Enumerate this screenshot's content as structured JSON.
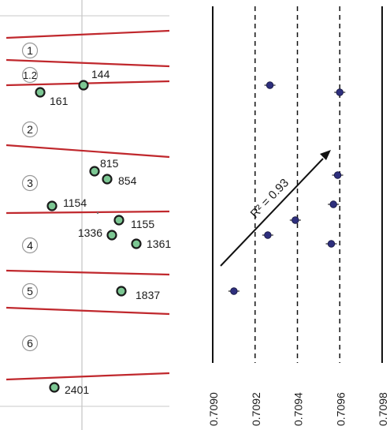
{
  "chart_data": [
    {
      "type": "scatter",
      "unit_labels": [
        "1",
        "1.2",
        "2",
        "3",
        "4",
        "5",
        "6"
      ],
      "points": [
        {
          "label": "144",
          "x": 0.5,
          "y": 144
        },
        {
          "label": "161",
          "x": -1.3,
          "y": 161
        },
        {
          "label": "815",
          "x": 0.4,
          "y": 815
        },
        {
          "label": "854",
          "x": 0.85,
          "y": 854
        },
        {
          "label": "1154",
          "x": -1.0,
          "y": 1154
        },
        {
          "label": "1155",
          "x": 1.2,
          "y": 1155
        },
        {
          "label": "1336",
          "x": 1.0,
          "y": 1336
        },
        {
          "label": "1361",
          "x": 1.7,
          "y": 1361
        },
        {
          "label": "1837",
          "x": 1.3,
          "y": 1837
        },
        {
          "label": "2401",
          "x": -0.9,
          "y": 2401
        }
      ]
    },
    {
      "type": "scatter",
      "annotation": "R² = 0.93",
      "xticklabels": [
        "0.7090",
        "0.7092",
        "0.7094",
        "0.7096",
        "0.7098"
      ],
      "xlim": [
        0.709,
        0.7098
      ],
      "values": [
        {
          "x": 0.70927,
          "depth": 144
        },
        {
          "x": 0.7096,
          "depth": 161
        },
        {
          "x": 0.70959,
          "depth": 815
        },
        {
          "x": 0.70957,
          "depth": 854
        },
        {
          "x": 0.70939,
          "depth": 1155
        },
        {
          "x": 0.70926,
          "depth": 1336
        },
        {
          "x": 0.70956,
          "depth": 1361
        },
        {
          "x": 0.7091,
          "depth": 1837
        }
      ]
    }
  ]
}
